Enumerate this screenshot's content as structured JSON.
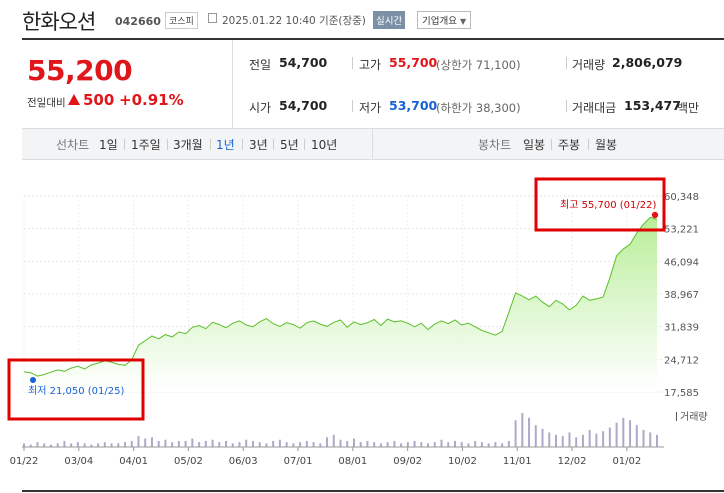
{
  "header": {
    "name": "한화오션",
    "code": "042660",
    "market": "코스피",
    "timestamp": "2025.01.22 10:40 기준(장중)",
    "realtime": "실시간",
    "company_info": "기업개요"
  },
  "price": {
    "current": "55,200",
    "change_label": "전일대비",
    "change_value": "500",
    "change_percent": "+0.91%"
  },
  "stats": {
    "prev_close_label": "전일",
    "prev_close": "54,700",
    "high_label": "고가",
    "high": "55,700",
    "upper_limit": "(상한가 71,100)",
    "volume_label": "거래량",
    "volume": "2,806,079",
    "open_label": "시가",
    "open": "54,700",
    "low_label": "저가",
    "low": "53,700",
    "lower_limit": "(하한가 38,300)",
    "amount_label": "거래대금",
    "amount": "153,477",
    "amount_unit": "백만"
  },
  "tabs": {
    "line_label": "선차트",
    "line_items": [
      "1일",
      "1주일",
      "3개월",
      "1년",
      "3년",
      "5년",
      "10년"
    ],
    "active": "1년",
    "candle_label": "봉차트",
    "candle_items": [
      "일봉",
      "주봉",
      "월봉"
    ]
  },
  "colors": {
    "up": "#e0161b",
    "down": "#1762d6",
    "area_top": "#b8ee98",
    "line": "#5cbf2a",
    "annotation_box": "#e00000"
  },
  "chart_data": {
    "type": "area",
    "y_ticks": [
      "60,348",
      "53,221",
      "46,094",
      "38,967",
      "31,839",
      "24,712",
      "17,585"
    ],
    "y_tick_values": [
      60348,
      53221,
      46094,
      38967,
      31839,
      24712,
      17585
    ],
    "ylim": [
      17585,
      60348
    ],
    "x_ticks": [
      "01/22",
      "03/04",
      "04/01",
      "05/02",
      "06/03",
      "07/01",
      "08/01",
      "09/02",
      "10/02",
      "11/01",
      "12/02",
      "01/02"
    ],
    "volume_label": "거래량",
    "high_annotation": "최고 55,700 (01/22)",
    "low_annotation": "최저 21,050 (01/25)",
    "series": [
      {
        "values": [
          22000,
          21800,
          21050,
          21400,
          21900,
          22400,
          22100,
          22800,
          23200,
          22600,
          23500,
          23900,
          24400,
          24100,
          23600,
          23400,
          24600,
          27800,
          28800,
          29800,
          29200,
          30100,
          29600,
          30700,
          30300,
          31700,
          32100,
          31400,
          32800,
          32300,
          31600,
          32600,
          33100,
          32200,
          31800,
          32900,
          33600,
          32500,
          31900,
          32700,
          32300,
          31500,
          32700,
          33100,
          32400,
          31900,
          32800,
          33300,
          31700,
          32900,
          32300,
          32700,
          33400,
          32100,
          33500,
          32900,
          33100,
          32600,
          31800,
          32600,
          31200,
          32400,
          33100,
          32500,
          33300,
          32200,
          32600,
          31800,
          31000,
          30500,
          30000,
          30800,
          35000,
          39200,
          38500,
          37700,
          38500,
          37200,
          36200,
          37600,
          36800,
          35500,
          36500,
          38500,
          37600,
          37900,
          38300,
          42500,
          47300,
          48800,
          49800,
          52300,
          54200,
          55700,
          55200
        ]
      }
    ],
    "volume": [
      3,
      2,
      4,
      3,
      2,
      3,
      5,
      3,
      4,
      3,
      2,
      3,
      4,
      3,
      3,
      4,
      5,
      9,
      7,
      8,
      5,
      6,
      4,
      5,
      5,
      7,
      4,
      5,
      6,
      4,
      5,
      3,
      4,
      6,
      5,
      4,
      3,
      5,
      6,
      4,
      3,
      4,
      5,
      4,
      3,
      8,
      10,
      6,
      5,
      7,
      4,
      5,
      4,
      3,
      4,
      5,
      3,
      4,
      5,
      4,
      3,
      4,
      6,
      4,
      5,
      4,
      3,
      5,
      4,
      3,
      4,
      3,
      5,
      22,
      28,
      24,
      18,
      15,
      12,
      10,
      9,
      12,
      8,
      10,
      14,
      11,
      13,
      16,
      20,
      24,
      22,
      18,
      14,
      12,
      10
    ]
  }
}
